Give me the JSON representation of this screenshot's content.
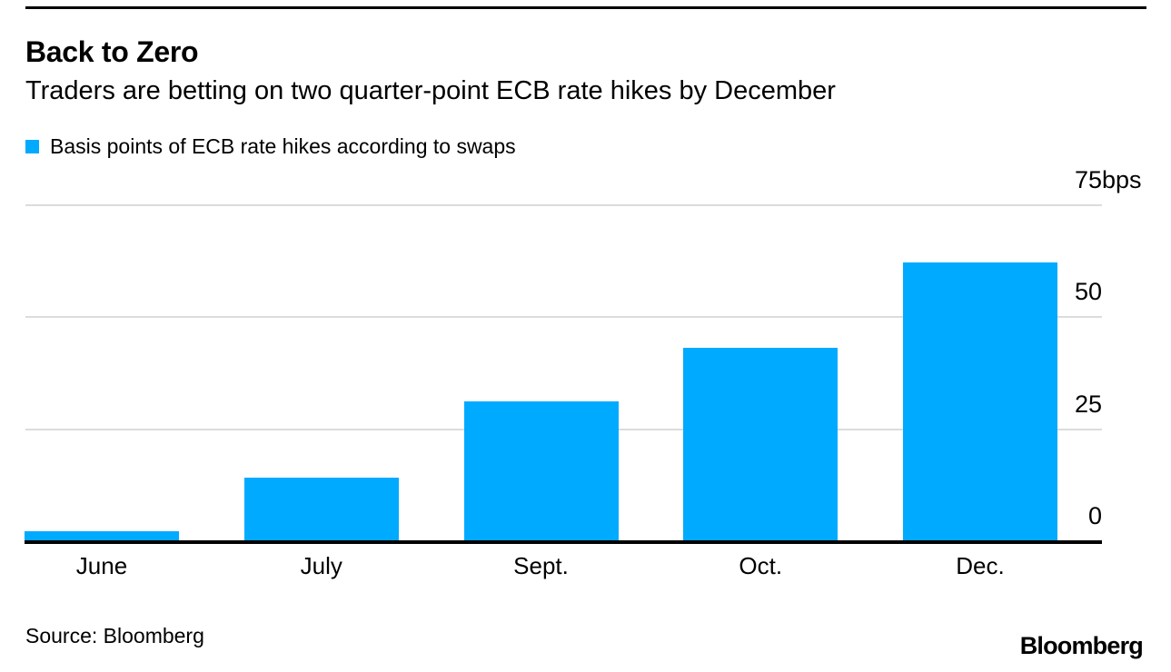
{
  "header": {
    "title": "Back to Zero",
    "subtitle": "Traders are betting on two quarter-point ECB rate hikes by December"
  },
  "legend": {
    "label": "Basis points of ECB rate hikes according to swaps",
    "swatch_color": "#00AAFF"
  },
  "chart_data": {
    "type": "bar",
    "title": "Back to Zero",
    "subtitle": "Traders are betting on two quarter-point ECB rate hikes by December",
    "categories": [
      "June",
      "July",
      "Sept.",
      "Oct.",
      "Dec."
    ],
    "values": [
      2,
      14,
      31,
      43,
      62
    ],
    "unit": "bps",
    "xlabel": "",
    "ylabel": "",
    "ylim": [
      0,
      75
    ],
    "y_ticks": [
      {
        "value": 75,
        "label": "75bps"
      },
      {
        "value": 50,
        "label": "50"
      },
      {
        "value": 25,
        "label": "25"
      },
      {
        "value": 0,
        "label": "0"
      }
    ],
    "grid": "horizontal-light-gray",
    "legend_position": "top-left",
    "legend_entries": [
      "Basis points of ECB rate hikes according to swaps"
    ],
    "bar_color": "#00AAFF",
    "colors": {
      "bar": "#00AAFF",
      "gridline": "#dcdcdc",
      "axis": "#000000",
      "text": "#000000"
    }
  },
  "footer": {
    "source": "Source: Bloomberg",
    "brand": "Bloomberg"
  }
}
